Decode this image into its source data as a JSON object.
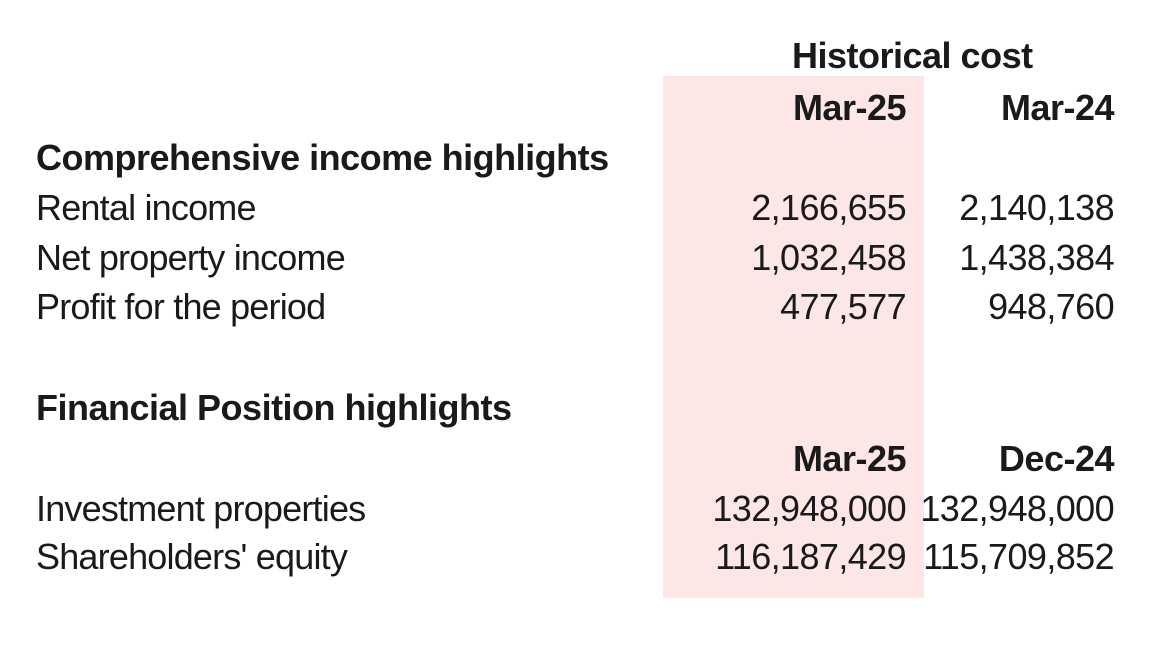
{
  "header": {
    "group_title": "Historical cost",
    "col_a": "Mar-25",
    "col_b": "Mar-24"
  },
  "income": {
    "title": "Comprehensive income highlights",
    "rows": [
      {
        "label": "Rental income",
        "a": "2,166,655",
        "b": "2,140,138"
      },
      {
        "label": "Net property income",
        "a": "1,032,458",
        "b": "1,438,384"
      },
      {
        "label": "Profit for the period",
        "a": "477,577",
        "b": "948,760"
      }
    ]
  },
  "position": {
    "title": "Financial Position highlights",
    "col_a": "Mar-25",
    "col_b": "Dec-24",
    "rows": [
      {
        "label": "Investment properties",
        "a": "132,948,000",
        "b": "132,948,000"
      },
      {
        "label": "Shareholders' equity",
        "a": "116,187,429",
        "b": "115,709,852"
      }
    ]
  },
  "colors": {
    "highlight": "#fce6e6",
    "text": "#1a1a1a"
  }
}
